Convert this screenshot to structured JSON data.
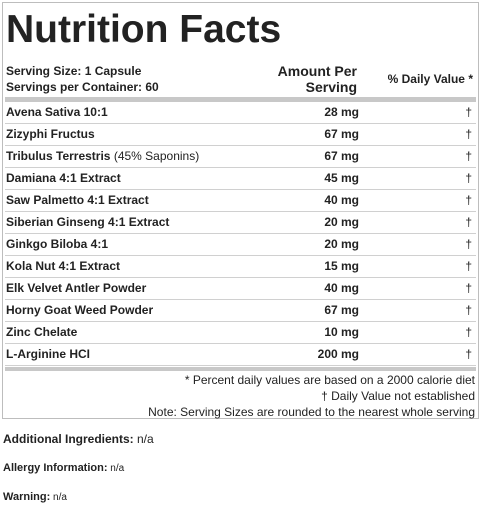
{
  "title": "Nutrition Facts",
  "serving_size": "Serving Size: 1 Capsule",
  "servings_per_container": "Servings per Container: 60",
  "amount_header_line1": "Amount Per",
  "amount_header_line2": "Serving",
  "daily_value_header": "% Daily Value *",
  "ingredients": [
    {
      "name": "Avena Sativa 10:1",
      "note": "",
      "amount": "28 mg",
      "dv": "†"
    },
    {
      "name": "Zizyphi Fructus",
      "note": "",
      "amount": "67 mg",
      "dv": "†"
    },
    {
      "name": "Tribulus Terrestris",
      "note": " (45% Saponins)",
      "amount": "67 mg",
      "dv": "†"
    },
    {
      "name": "Damiana 4:1 Extract",
      "note": "",
      "amount": "45 mg",
      "dv": "†"
    },
    {
      "name": "Saw Palmetto 4:1 Extract",
      "note": "",
      "amount": "40 mg",
      "dv": "†"
    },
    {
      "name": "Siberian Ginseng 4:1 Extract",
      "note": "",
      "amount": "20 mg",
      "dv": "†"
    },
    {
      "name": "Ginkgo Biloba 4:1",
      "note": "",
      "amount": "20 mg",
      "dv": "†"
    },
    {
      "name": "Kola Nut 4:1 Extract",
      "note": "",
      "amount": "15 mg",
      "dv": "†"
    },
    {
      "name": "Elk Velvet Antler Powder",
      "note": "",
      "amount": "40 mg",
      "dv": "†"
    },
    {
      "name": "Horny Goat Weed Powder",
      "note": "",
      "amount": "67 mg",
      "dv": "†"
    },
    {
      "name": "Zinc Chelate",
      "note": "",
      "amount": "10 mg",
      "dv": "†"
    },
    {
      "name": "L-Arginine HCI",
      "note": "",
      "amount": "200 mg",
      "dv": "†"
    }
  ],
  "footnotes": [
    "* Percent daily values are based on a 2000 calorie diet",
    "† Daily Value not established",
    "Note: Serving Sizes are rounded to the nearest whole serving"
  ],
  "additional_ingredients": {
    "label": "Additional Ingredients:",
    "value": " n/a"
  },
  "allergy_information": {
    "label": "Allergy Information:",
    "value": " n/a"
  },
  "warning": {
    "label": "Warning:",
    "value": " n/a"
  }
}
